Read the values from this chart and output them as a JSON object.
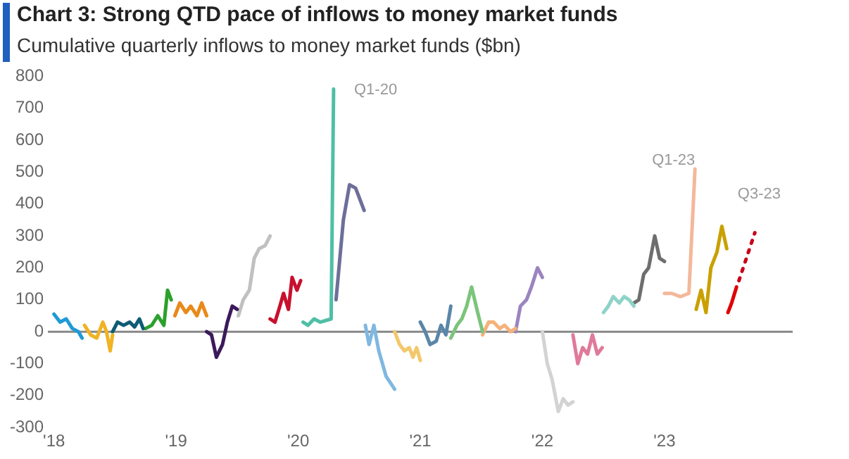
{
  "chart_data": {
    "type": "line",
    "title": "Chart 3: Strong QTD pace of inflows to money market funds",
    "subtitle": "Cumulative quarterly inflows to money market funds ($bn)",
    "xlim": [
      2017.95,
      2024.05
    ],
    "xticks": [
      {
        "value": 2018,
        "label": "'18"
      },
      {
        "value": 2019,
        "label": "'19"
      },
      {
        "value": 2020,
        "label": "'20"
      },
      {
        "value": 2021,
        "label": "'21"
      },
      {
        "value": 2022,
        "label": "'22"
      },
      {
        "value": 2023,
        "label": "'23"
      }
    ],
    "ylim": [
      -300,
      800
    ],
    "yticks": [
      -300,
      -200,
      -100,
      0,
      100,
      200,
      300,
      400,
      500,
      600,
      700,
      800
    ],
    "grid": false,
    "legend": false,
    "marker": "none",
    "line_style": "solid",
    "ref_lines": [
      {
        "axis": "y",
        "value": 0,
        "color": "#888888"
      }
    ],
    "annotations": [
      "Q1-20",
      "Q1-23",
      "Q3-23"
    ],
    "series": [
      {
        "color": "#1f9ad6",
        "x": [
          2018.0,
          2018.05,
          2018.1,
          2018.15,
          2018.2,
          2018.23
        ],
        "values": [
          55,
          30,
          40,
          10,
          0,
          -20
        ]
      },
      {
        "color": "#f0b323",
        "x": [
          2018.25,
          2018.3,
          2018.35,
          2018.4,
          2018.43,
          2018.46,
          2018.48
        ],
        "values": [
          20,
          -10,
          -20,
          30,
          0,
          -60,
          -10
        ]
      },
      {
        "color": "#0e5c74",
        "x": [
          2018.48,
          2018.52,
          2018.57,
          2018.62,
          2018.66,
          2018.7,
          2018.73
        ],
        "values": [
          0,
          30,
          20,
          30,
          15,
          40,
          10
        ]
      },
      {
        "color": "#2ca02c",
        "x": [
          2018.75,
          2018.8,
          2018.85,
          2018.9,
          2018.93,
          2018.96
        ],
        "values": [
          10,
          20,
          50,
          20,
          130,
          100
        ]
      },
      {
        "color": "#e88a1a",
        "x": [
          2018.99,
          2019.03,
          2019.08,
          2019.12,
          2019.17,
          2019.21,
          2019.25
        ],
        "values": [
          50,
          90,
          60,
          80,
          50,
          90,
          50
        ]
      },
      {
        "color": "#3b1a5a",
        "x": [
          2019.25,
          2019.29,
          2019.33,
          2019.38,
          2019.42,
          2019.46,
          2019.5
        ],
        "values": [
          0,
          -10,
          -80,
          -40,
          30,
          80,
          70
        ]
      },
      {
        "color": "#c0c0c0",
        "x": [
          2019.51,
          2019.55,
          2019.6,
          2019.64,
          2019.68,
          2019.73,
          2019.77
        ],
        "values": [
          50,
          100,
          130,
          230,
          260,
          270,
          300
        ]
      },
      {
        "color": "#c8102e",
        "x": [
          2019.77,
          2019.81,
          2019.85,
          2019.88,
          2019.92,
          2019.95,
          2019.99,
          2020.02
        ],
        "values": [
          40,
          30,
          80,
          120,
          70,
          170,
          130,
          160
        ]
      },
      {
        "color": "#4fbfa5",
        "x": [
          2020.04,
          2020.08,
          2020.13,
          2020.18,
          2020.27,
          2020.29
        ],
        "values": [
          30,
          20,
          40,
          30,
          40,
          760
        ]
      },
      {
        "color": "#6d6f9a",
        "x": [
          2020.31,
          2020.37,
          2020.42,
          2020.47,
          2020.5,
          2020.54
        ],
        "values": [
          100,
          350,
          460,
          450,
          420,
          380
        ]
      },
      {
        "color": "#7fb8e0",
        "x": [
          2020.55,
          2020.58,
          2020.62,
          2020.66,
          2020.72,
          2020.79
        ],
        "values": [
          20,
          -40,
          20,
          -60,
          -140,
          -180
        ]
      },
      {
        "color": "#f2c86a",
        "x": [
          2020.79,
          2020.83,
          2020.87,
          2020.91,
          2020.94,
          2020.97,
          2021.0
        ],
        "values": [
          0,
          -40,
          -60,
          -50,
          -80,
          -50,
          -90
        ]
      },
      {
        "color": "#5a86a8",
        "x": [
          2021.0,
          2021.04,
          2021.08,
          2021.13,
          2021.17,
          2021.21,
          2021.25
        ],
        "values": [
          30,
          0,
          -40,
          -30,
          20,
          -10,
          80
        ]
      },
      {
        "color": "#7cc47c",
        "x": [
          2021.25,
          2021.3,
          2021.34,
          2021.38,
          2021.42,
          2021.47,
          2021.51
        ],
        "values": [
          -20,
          20,
          40,
          80,
          140,
          60,
          0
        ]
      },
      {
        "color": "#f5b27a",
        "x": [
          2021.51,
          2021.56,
          2021.6,
          2021.65,
          2021.69,
          2021.74,
          2021.78
        ],
        "values": [
          -10,
          30,
          30,
          10,
          20,
          0,
          10
        ]
      },
      {
        "color": "#9b84c0",
        "x": [
          2021.78,
          2021.82,
          2021.87,
          2021.91,
          2021.96,
          2022.0
        ],
        "values": [
          0,
          80,
          100,
          140,
          200,
          170
        ]
      },
      {
        "color": "#d3d3d3",
        "x": [
          2022.0,
          2022.04,
          2022.08,
          2022.13,
          2022.17,
          2022.21,
          2022.25
        ],
        "values": [
          0,
          -100,
          -150,
          -250,
          -210,
          -230,
          -220
        ]
      },
      {
        "color": "#e07a9a",
        "x": [
          2022.25,
          2022.29,
          2022.33,
          2022.37,
          2022.41,
          2022.45,
          2022.49
        ],
        "values": [
          -10,
          -100,
          -50,
          -70,
          -10,
          -70,
          -50
        ]
      },
      {
        "color": "#8fd3c8",
        "x": [
          2022.5,
          2022.54,
          2022.58,
          2022.63,
          2022.67,
          2022.71,
          2022.75
        ],
        "values": [
          60,
          80,
          110,
          90,
          110,
          100,
          80
        ]
      },
      {
        "color": "#6e6e6e",
        "x": [
          2022.75,
          2022.79,
          2022.83,
          2022.87,
          2022.92,
          2022.96,
          2023.0
        ],
        "values": [
          90,
          100,
          180,
          200,
          300,
          230,
          220
        ]
      },
      {
        "color": "#f3b89a",
        "x": [
          2023.0,
          2023.06,
          2023.13,
          2023.2,
          2023.25
        ],
        "values": [
          120,
          120,
          110,
          120,
          510
        ]
      },
      {
        "color": "#c9a000",
        "x": [
          2023.26,
          2023.3,
          2023.34,
          2023.38,
          2023.43,
          2023.47,
          2023.51
        ],
        "values": [
          70,
          130,
          60,
          200,
          250,
          330,
          260
        ]
      },
      {
        "color": "#e00000",
        "x": [
          2023.52,
          2023.55,
          2023.59
        ],
        "values": [
          60,
          90,
          140
        ]
      },
      {
        "color": "#c80018",
        "line_style": "dotted",
        "x": [
          2023.61,
          2023.74
        ],
        "values": [
          160,
          310
        ]
      }
    ]
  }
}
